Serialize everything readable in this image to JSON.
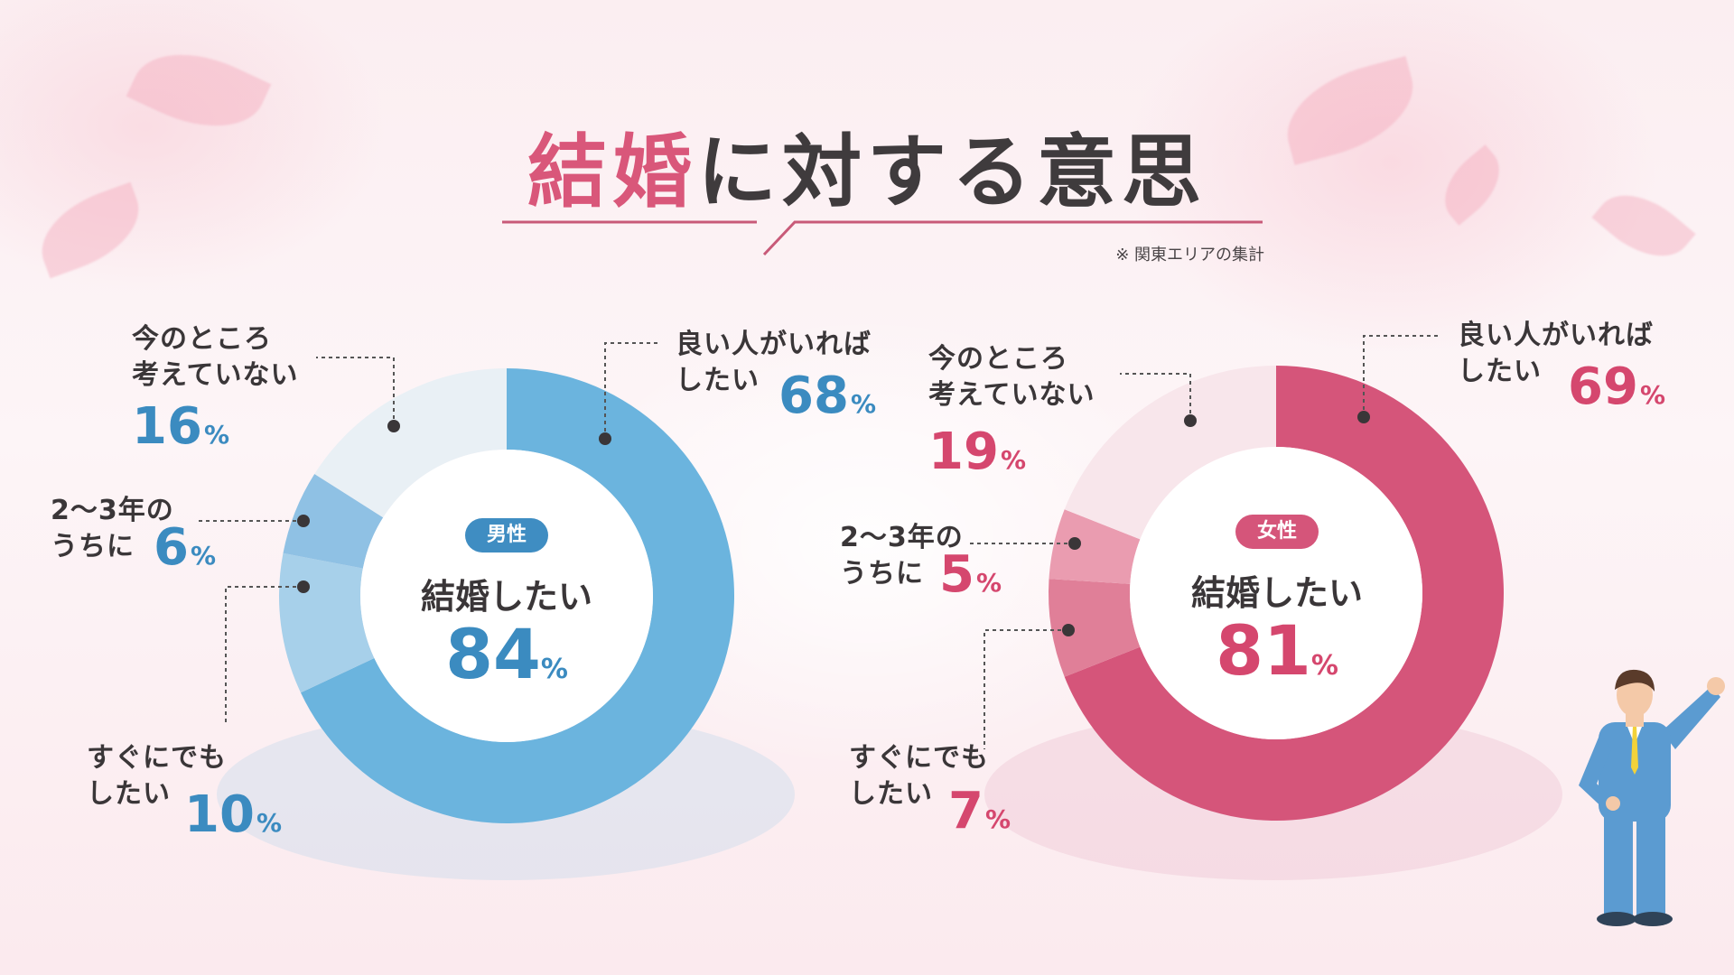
{
  "title_highlight": "結婚",
  "title_rest": "に対する意思",
  "note": "※ 関東エリアの集計",
  "colors": {
    "male": [
      "#6bb4de",
      "#a7d0ea",
      "#8fc1e4",
      "#e9f0f5"
    ],
    "female": [
      "#d5557a",
      "#e07f98",
      "#ea9cb0",
      "#f8e6eb"
    ]
  },
  "chart_data": [
    {
      "type": "pie",
      "name": "男性",
      "center_label": "結婚したい",
      "center_value": 84,
      "unit": "%",
      "slices": [
        {
          "label": "良い人がいればしたい",
          "value": 68
        },
        {
          "label": "すぐにでもしたい",
          "value": 10
        },
        {
          "label": "2〜3年のうちに",
          "value": 6
        },
        {
          "label": "今のところ考えていない",
          "value": 16
        }
      ]
    },
    {
      "type": "pie",
      "name": "女性",
      "center_label": "結婚したい",
      "center_value": 81,
      "unit": "%",
      "slices": [
        {
          "label": "良い人がいればしたい",
          "value": 69
        },
        {
          "label": "すぐにでもしたい",
          "value": 7
        },
        {
          "label": "2〜3年のうちに",
          "value": 5
        },
        {
          "label": "今のところ考えていない",
          "value": 19
        }
      ]
    }
  ],
  "labels": {
    "male": {
      "like": [
        "良い人がいれば",
        "したい"
      ],
      "soon": [
        "すぐにでも",
        "したい"
      ],
      "years": [
        "2〜3年の",
        "うちに"
      ],
      "none": [
        "今のところ",
        "考えていない"
      ]
    },
    "female": {
      "like": [
        "良い人がいれば",
        "したい"
      ],
      "soon": [
        "すぐにでも",
        "したい"
      ],
      "years": [
        "2〜3年の",
        "うちに"
      ],
      "none": [
        "今のところ",
        "考えていない"
      ]
    }
  },
  "percent_unit": "%"
}
